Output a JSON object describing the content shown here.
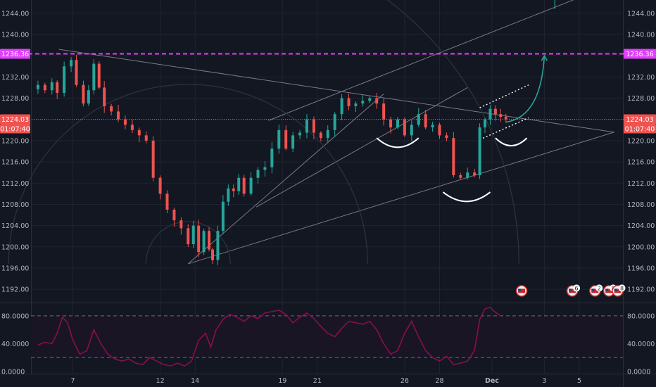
{
  "chart_data": {
    "type": "candlestick",
    "price_axis": {
      "ticks": [
        "1244.00",
        "1240.00",
        "1236.00",
        "1232.00",
        "1228.00",
        "1224.00",
        "1220.00",
        "1216.00",
        "1212.00",
        "1208.00",
        "1204.00",
        "1200.00",
        "1196.00",
        "1192.00"
      ],
      "range": [
        1189.5,
        1246.5
      ]
    },
    "time_axis": {
      "labels": [
        {
          "text": "7",
          "day": 7
        },
        {
          "text": "12",
          "day": 12
        },
        {
          "text": "14",
          "day": 14
        },
        {
          "text": "19",
          "day": 19
        },
        {
          "text": "21",
          "day": 21
        },
        {
          "text": "26",
          "day": 26
        },
        {
          "text": "28",
          "day": 28
        },
        {
          "text": "Dec",
          "day": 31
        },
        {
          "text": "3",
          "day": 34
        },
        {
          "text": "5",
          "day": 36
        }
      ],
      "range": [
        4.6,
        38.5
      ]
    },
    "price_tags": {
      "magenta_level": {
        "label": "1236.36",
        "value": 1236.36,
        "color": "#e040fb"
      },
      "current": {
        "label": "1224.03",
        "value": 1224.03,
        "countdown": "01:07:40",
        "color": "#ef5350"
      }
    },
    "close_series": [
      [
        5.0,
        1230.5
      ],
      [
        5.4,
        1229.5
      ],
      [
        5.8,
        1231.0
      ],
      [
        6.1,
        1229.0
      ],
      [
        6.5,
        1234.0
      ],
      [
        6.9,
        1235.2
      ],
      [
        7.2,
        1230.5
      ],
      [
        7.6,
        1227.0
      ],
      [
        7.9,
        1229.5
      ],
      [
        8.2,
        1234.5
      ],
      [
        8.5,
        1230.0
      ],
      [
        8.8,
        1226.5
      ],
      [
        9.2,
        1225.5
      ],
      [
        9.6,
        1224.0
      ],
      [
        10.0,
        1223.0
      ],
      [
        10.4,
        1222.0
      ],
      [
        10.8,
        1221.0
      ],
      [
        11.2,
        1220.0
      ],
      [
        11.6,
        1213.0
      ],
      [
        12.0,
        1210.0
      ],
      [
        12.4,
        1207.0
      ],
      [
        12.8,
        1205.0
      ],
      [
        13.2,
        1203.5
      ],
      [
        13.6,
        1200.5
      ],
      [
        13.9,
        1204.0
      ],
      [
        14.2,
        1199.0
      ],
      [
        14.5,
        1203.0
      ],
      [
        14.8,
        1199.5
      ],
      [
        15.0,
        1197.5
      ],
      [
        15.3,
        1203.0
      ],
      [
        15.6,
        1208.5
      ],
      [
        15.9,
        1211.0
      ],
      [
        16.2,
        1210.5
      ],
      [
        16.5,
        1213.0
      ],
      [
        16.8,
        1210.0
      ],
      [
        17.2,
        1213.0
      ],
      [
        17.6,
        1214.5
      ],
      [
        18.0,
        1215.0
      ],
      [
        18.4,
        1218.5
      ],
      [
        18.8,
        1222.0
      ],
      [
        19.2,
        1218.5
      ],
      [
        19.6,
        1221.0
      ],
      [
        20.0,
        1221.5
      ],
      [
        20.4,
        1224.0
      ],
      [
        20.8,
        1221.5
      ],
      [
        21.2,
        1220.5
      ],
      [
        21.6,
        1222.0
      ],
      [
        22.0,
        1225.0
      ],
      [
        22.4,
        1228.0
      ],
      [
        22.8,
        1226.5
      ],
      [
        23.2,
        1227.0
      ],
      [
        23.6,
        1227.5
      ],
      [
        24.0,
        1228.0
      ],
      [
        24.4,
        1227.0
      ],
      [
        24.8,
        1224.0
      ],
      [
        25.2,
        1222.5
      ],
      [
        25.6,
        1224.0
      ],
      [
        26.0,
        1221.0
      ],
      [
        26.4,
        1223.0
      ],
      [
        26.8,
        1225.0
      ],
      [
        27.2,
        1222.5
      ],
      [
        27.6,
        1223.0
      ],
      [
        28.0,
        1221.0
      ],
      [
        28.4,
        1220.5
      ],
      [
        28.8,
        1213.5
      ],
      [
        29.2,
        1213.0
      ],
      [
        29.6,
        1214.0
      ],
      [
        30.0,
        1213.5
      ],
      [
        30.3,
        1222.5
      ],
      [
        30.6,
        1224.0
      ],
      [
        30.9,
        1226.0
      ],
      [
        31.2,
        1225.0
      ],
      [
        31.5,
        1224.5
      ],
      [
        31.8,
        1224.03
      ]
    ],
    "oscillator": {
      "ticks": [
        "80.0000",
        "40.0000",
        "0.0000"
      ],
      "range": [
        -3,
        98
      ],
      "levels": [
        80,
        20
      ],
      "values": [
        [
          5.0,
          38
        ],
        [
          5.4,
          42
        ],
        [
          5.8,
          40
        ],
        [
          6.1,
          55
        ],
        [
          6.4,
          78
        ],
        [
          6.7,
          70
        ],
        [
          7.0,
          45
        ],
        [
          7.4,
          25
        ],
        [
          7.8,
          30
        ],
        [
          8.2,
          60
        ],
        [
          8.6,
          40
        ],
        [
          9.0,
          25
        ],
        [
          9.4,
          18
        ],
        [
          9.8,
          15
        ],
        [
          10.2,
          18
        ],
        [
          10.6,
          12
        ],
        [
          11.0,
          10
        ],
        [
          11.4,
          20
        ],
        [
          11.8,
          15
        ],
        [
          12.2,
          10
        ],
        [
          12.6,
          8
        ],
        [
          13.0,
          12
        ],
        [
          13.4,
          8
        ],
        [
          13.8,
          15
        ],
        [
          14.2,
          45
        ],
        [
          14.6,
          55
        ],
        [
          14.9,
          35
        ],
        [
          15.2,
          60
        ],
        [
          15.6,
          75
        ],
        [
          16.0,
          82
        ],
        [
          16.4,
          78
        ],
        [
          16.8,
          72
        ],
        [
          17.2,
          80
        ],
        [
          17.6,
          76
        ],
        [
          18.0,
          84
        ],
        [
          18.4,
          86
        ],
        [
          18.8,
          88
        ],
        [
          19.2,
          82
        ],
        [
          19.6,
          70
        ],
        [
          20.0,
          78
        ],
        [
          20.4,
          84
        ],
        [
          20.8,
          76
        ],
        [
          21.2,
          65
        ],
        [
          21.6,
          55
        ],
        [
          22.0,
          50
        ],
        [
          22.4,
          62
        ],
        [
          22.8,
          72
        ],
        [
          23.2,
          70
        ],
        [
          23.6,
          68
        ],
        [
          24.0,
          72
        ],
        [
          24.4,
          60
        ],
        [
          24.8,
          40
        ],
        [
          25.2,
          25
        ],
        [
          25.6,
          30
        ],
        [
          26.0,
          55
        ],
        [
          26.4,
          72
        ],
        [
          26.8,
          50
        ],
        [
          27.2,
          30
        ],
        [
          27.6,
          20
        ],
        [
          28.0,
          15
        ],
        [
          28.4,
          22
        ],
        [
          28.8,
          10
        ],
        [
          29.2,
          12
        ],
        [
          29.6,
          15
        ],
        [
          30.0,
          30
        ],
        [
          30.3,
          75
        ],
        [
          30.6,
          90
        ],
        [
          30.9,
          92
        ],
        [
          31.2,
          85
        ],
        [
          31.5,
          80
        ]
      ]
    },
    "annotations": {
      "flag_icons": [
        "us-flag-event-icon",
        "us-flag-event-icon",
        "us-flag-event-icon",
        "us-flag-event-icon"
      ],
      "event_counts": [
        "6",
        "2",
        "8",
        "8"
      ]
    },
    "colors": {
      "background": "#131722",
      "bull": "#26a69a",
      "bear": "#ef5350",
      "magenta": "#e040fb",
      "current_line": "#ef5350",
      "oscillator_line": "#880e4f",
      "drawing": "#787b86",
      "arrow": "#26a69a"
    }
  }
}
